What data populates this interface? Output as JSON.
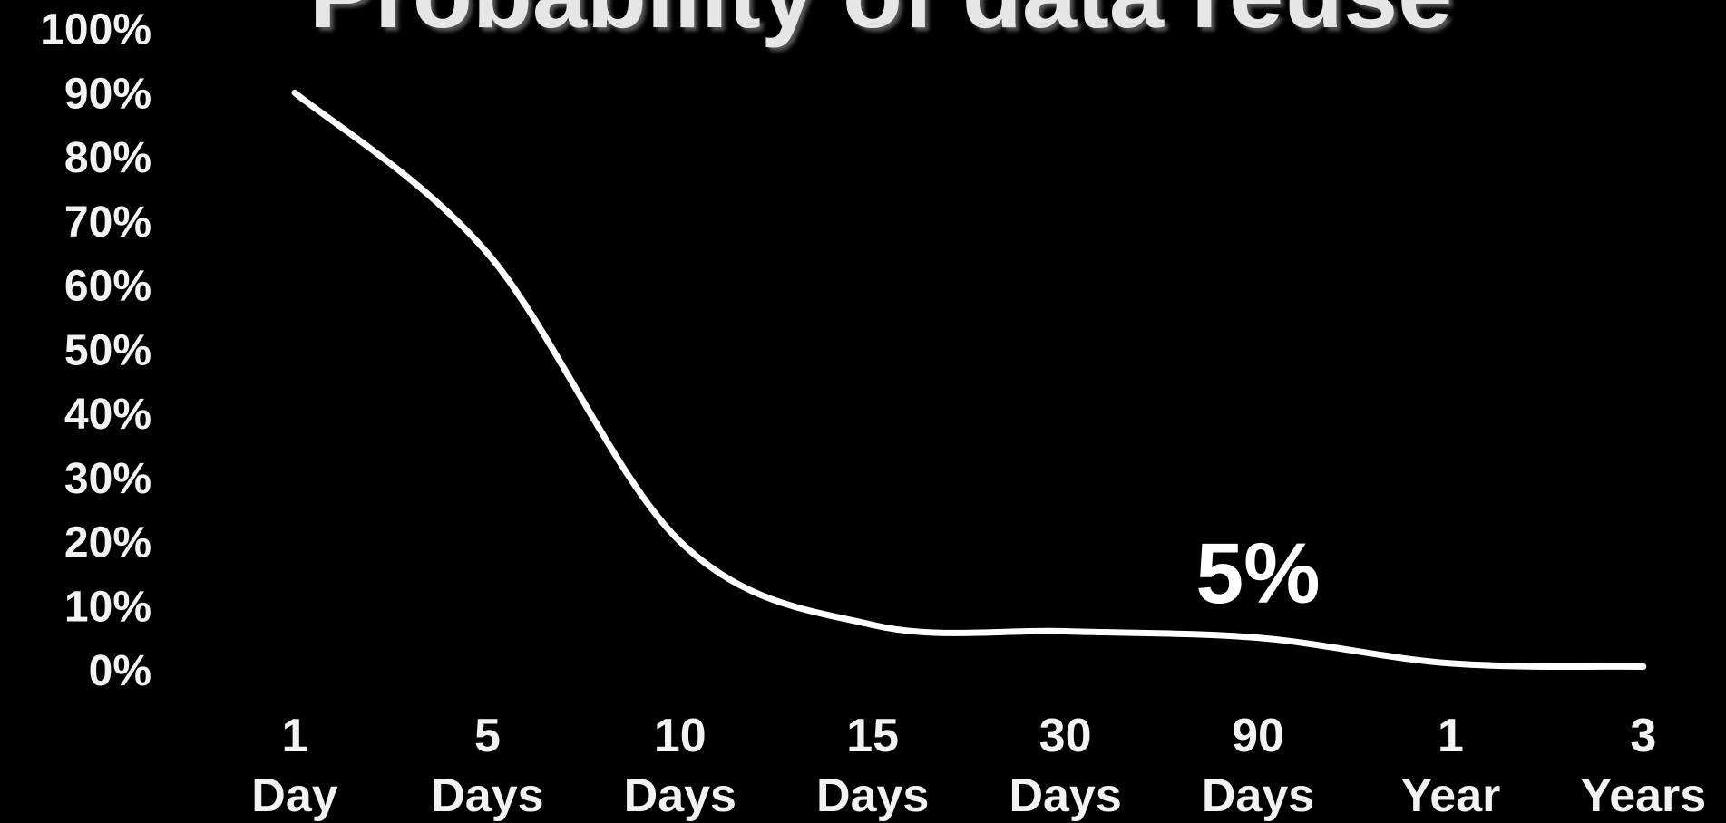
{
  "chart_data": {
    "type": "line",
    "title": "Probability of data reuse",
    "annotation": "5%",
    "categories": [
      "1\nDay",
      "5\nDays",
      "10\nDays",
      "15\nDays",
      "30\nDays",
      "90\nDays",
      "1\nYear",
      "3\nYears"
    ],
    "series": [
      {
        "name": "Probability of data reuse",
        "color": "#ffffff",
        "values": [
          90,
          65,
          20,
          7,
          6,
          5,
          1,
          0.5
        ]
      }
    ],
    "ylim": [
      0,
      100
    ],
    "yticks": [
      {
        "value": 0,
        "label": "0%"
      },
      {
        "value": 10,
        "label": "10%"
      },
      {
        "value": 20,
        "label": "20%"
      },
      {
        "value": 30,
        "label": "30%"
      },
      {
        "value": 40,
        "label": "40%"
      },
      {
        "value": 50,
        "label": "50%"
      },
      {
        "value": 60,
        "label": "60%"
      },
      {
        "value": 70,
        "label": "70%"
      },
      {
        "value": 80,
        "label": "80%"
      },
      {
        "value": 90,
        "label": "90%"
      },
      {
        "value": 100,
        "label": "100%"
      }
    ],
    "grid": false
  }
}
